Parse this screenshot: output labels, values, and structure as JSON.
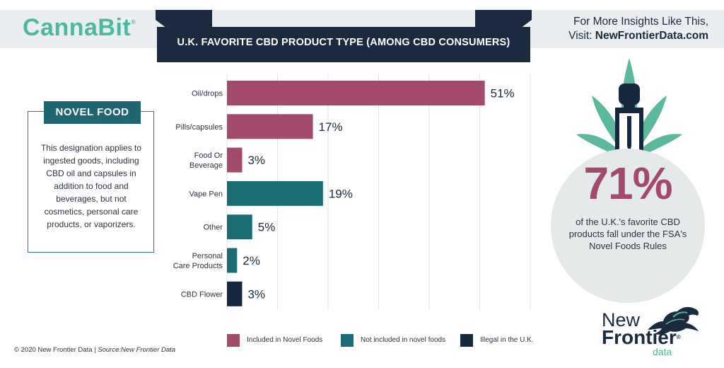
{
  "brand": {
    "logo": "CannaBit",
    "logo_mark": "®"
  },
  "header": {
    "title": "U.K. FAVORITE CBD PRODUCT TYPE (AMONG CBD CONSUMERS)",
    "insights_line1": "For More Insights Like This,",
    "insights_prefix": "Visit: ",
    "insights_link": "NewFrontierData.com"
  },
  "novel_food": {
    "title": "NOVEL FOOD",
    "text": "This designation applies to ingested goods, including CBD oil and capsules in addition to food and beverages, but not cosmetics, personal care products, or vaporizers."
  },
  "highlight": {
    "percent": "71%",
    "text": "of the U.K.'s favorite CBD products fall under the FSA's Novel Foods Rules"
  },
  "footer": {
    "copyright": "© 2020  New Frontier Data | ",
    "source": "Source:New Frontier Data",
    "logo_new": "New",
    "logo_frontier": "Frontier",
    "logo_data": "data",
    "logo_mark": "®"
  },
  "colors": {
    "included": "#a3496b",
    "not_included": "#1a6c76",
    "illegal": "#15283d",
    "accent": "#4db8a0",
    "banner": "#1b2a3e"
  },
  "chart_data": {
    "type": "bar",
    "orientation": "horizontal",
    "title": "U.K. FAVORITE CBD PRODUCT TYPE (AMONG CBD CONSUMERS)",
    "categories": [
      [
        "Oil/drops"
      ],
      [
        "Pills/capsules"
      ],
      [
        "Food Or",
        "Beverage"
      ],
      [
        "Vape Pen"
      ],
      [
        "Other"
      ],
      [
        "Personal",
        "Care Products"
      ],
      [
        "CBD Flower"
      ]
    ],
    "values": [
      51,
      17,
      3,
      19,
      5,
      2,
      3
    ],
    "value_labels": [
      "51%",
      "17%",
      "3%",
      "19%",
      "5%",
      "2%",
      "3%"
    ],
    "groups": [
      "included",
      "included",
      "included",
      "not_included",
      "not_included",
      "not_included",
      "illegal"
    ],
    "xlim": [
      0,
      60
    ],
    "grid": true,
    "legend": [
      {
        "key": "included",
        "label": "Included in Novel Foods"
      },
      {
        "key": "not_included",
        "label": "Not included in novel foods"
      },
      {
        "key": "illegal",
        "label": "Illegal in the U.K."
      }
    ],
    "legend_position": "bottom"
  }
}
